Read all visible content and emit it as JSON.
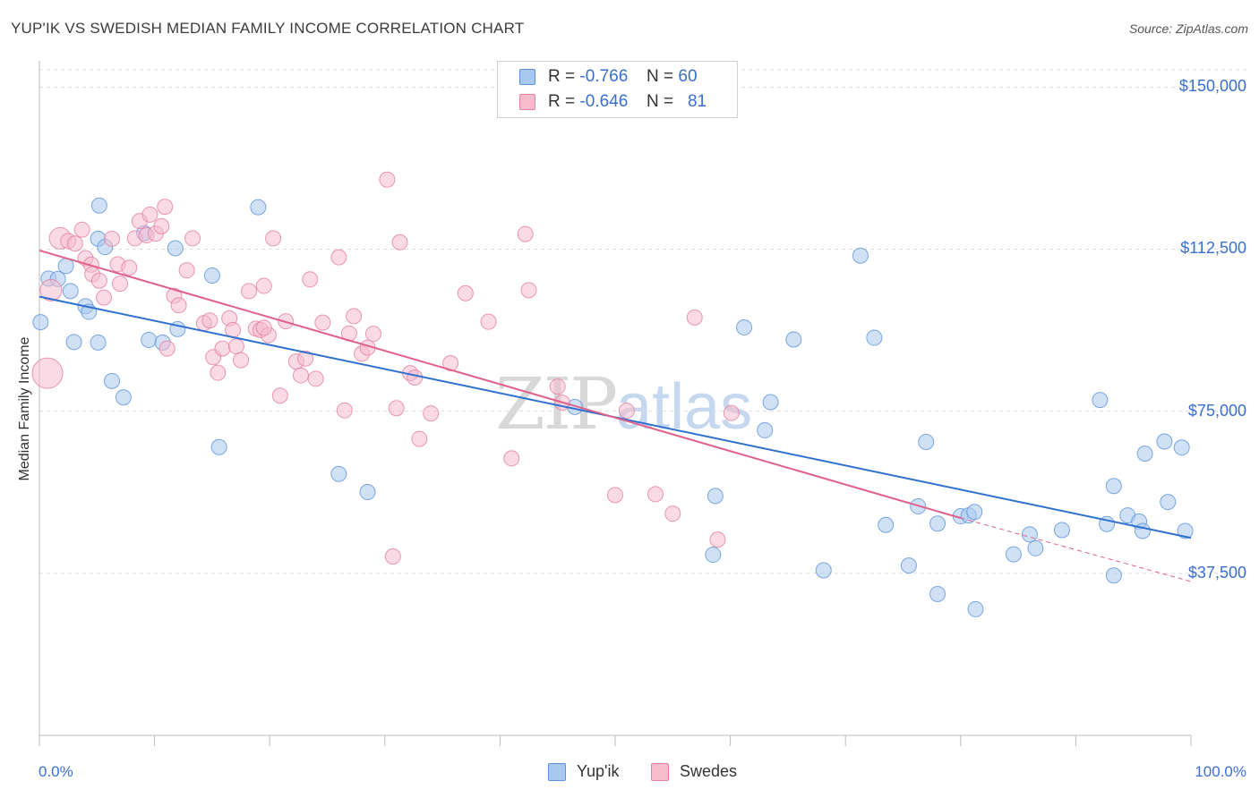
{
  "header": {
    "title": "YUP'IK VS SWEDISH MEDIAN FAMILY INCOME CORRELATION CHART",
    "source": "Source: ZipAtlas.com"
  },
  "legend": {
    "rows": [
      {
        "r_label": "R =",
        "r_value": "-0.766",
        "n_label": "N =",
        "n_value": "60"
      },
      {
        "r_label": "R =",
        "r_value": "-0.646",
        "n_label": "N =",
        "n_value": "81"
      }
    ]
  },
  "bottom_legend": {
    "items": [
      {
        "label": "Yup'ik"
      },
      {
        "label": "Swedes"
      }
    ]
  },
  "watermark": {
    "zip": "ZIP",
    "atlas": "atlas"
  },
  "colors": {
    "yupik_fill": "#a9c8ef",
    "yupik_stroke": "#5d93d9",
    "yupik_line": "#2f6fd0",
    "swedes_fill": "#f6bccd",
    "swedes_stroke": "#e57fa0",
    "swedes_line": "#e0608a",
    "axis_text": "#3a6fd0",
    "grid": "#dddddd"
  },
  "chart_data": {
    "type": "scatter",
    "title": "YUP'IK VS SWEDISH MEDIAN FAMILY INCOME CORRELATION CHART",
    "xlabel": "",
    "ylabel": "Median Family Income",
    "x_tick_labels": [
      "0.0%",
      "100.0%"
    ],
    "y_tick_labels": [
      "$37,500",
      "$75,000",
      "$112,500",
      "$150,000"
    ],
    "y_ticks": [
      37500,
      75000,
      112500,
      150000
    ],
    "xlim": [
      0,
      100
    ],
    "ylim": [
      0,
      154000
    ],
    "grid": true,
    "legend_position": "top-center",
    "series": [
      {
        "name": "Yup'ik",
        "r": -0.766,
        "n": 60,
        "trend": {
          "x0": 0,
          "y0": 101500,
          "x1": 100,
          "y1": 45700
        },
        "points": [
          [
            0.1,
            95600
          ],
          [
            0.8,
            105700
          ],
          [
            2.3,
            108600
          ],
          [
            1.6,
            105600
          ],
          [
            2.7,
            102800
          ],
          [
            3.0,
            91000
          ],
          [
            4.0,
            99300
          ],
          [
            4.3,
            98000
          ],
          [
            5.1,
            90900
          ],
          [
            5.1,
            114900
          ],
          [
            5.2,
            122600
          ],
          [
            5.7,
            113000
          ],
          [
            6.3,
            82000
          ],
          [
            7.3,
            78200
          ],
          [
            9.1,
            116200
          ],
          [
            9.5,
            91500
          ],
          [
            10.7,
            90900
          ],
          [
            11.8,
            112700
          ],
          [
            12.0,
            94000
          ],
          [
            15.0,
            106400
          ],
          [
            15.6,
            66700
          ],
          [
            19.0,
            122200
          ],
          [
            26.0,
            60500
          ],
          [
            28.5,
            56300
          ],
          [
            61.2,
            94400
          ],
          [
            63.5,
            77100
          ],
          [
            63.0,
            70600
          ],
          [
            65.5,
            91600
          ],
          [
            68.1,
            38200
          ],
          [
            71.3,
            111000
          ],
          [
            72.5,
            92000
          ],
          [
            73.5,
            48700
          ],
          [
            75.5,
            39300
          ],
          [
            77.0,
            67900
          ],
          [
            76.3,
            53000
          ],
          [
            78.0,
            49000
          ],
          [
            78.0,
            32700
          ],
          [
            80.0,
            50700
          ],
          [
            80.7,
            50900
          ],
          [
            81.2,
            51700
          ],
          [
            81.3,
            29200
          ],
          [
            84.6,
            41900
          ],
          [
            86.0,
            46500
          ],
          [
            86.5,
            43300
          ],
          [
            88.8,
            47500
          ],
          [
            92.1,
            77600
          ],
          [
            92.7,
            48900
          ],
          [
            93.3,
            57700
          ],
          [
            93.3,
            37000
          ],
          [
            94.5,
            50900
          ],
          [
            95.5,
            49500
          ],
          [
            95.8,
            47300
          ],
          [
            96.0,
            65200
          ],
          [
            97.7,
            68000
          ],
          [
            98.0,
            54000
          ],
          [
            99.2,
            66600
          ],
          [
            99.5,
            47300
          ],
          [
            46.5,
            76000
          ],
          [
            58.7,
            55400
          ],
          [
            58.5,
            41800
          ]
        ]
      },
      {
        "name": "Swedes",
        "r": -0.646,
        "n": 81,
        "trend": {
          "x0": 0,
          "y0": 112200,
          "x1": 80,
          "y1": 50300
        },
        "trend_dashed": {
          "x0": 80,
          "y0": 50300,
          "x1": 100,
          "y1": 35600
        },
        "points": [
          [
            0.7,
            83800
          ],
          [
            1.0,
            103000
          ],
          [
            1.8,
            115000
          ],
          [
            2.5,
            114400
          ],
          [
            3.1,
            113800
          ],
          [
            3.7,
            117000
          ],
          [
            4.0,
            110400
          ],
          [
            4.5,
            108900
          ],
          [
            4.6,
            106700
          ],
          [
            5.2,
            105200
          ],
          [
            5.6,
            101300
          ],
          [
            6.3,
            114900
          ],
          [
            6.8,
            109000
          ],
          [
            7.0,
            104500
          ],
          [
            7.8,
            108200
          ],
          [
            8.3,
            115000
          ],
          [
            8.7,
            119000
          ],
          [
            9.3,
            115700
          ],
          [
            9.6,
            120500
          ],
          [
            10.1,
            116100
          ],
          [
            10.6,
            117800
          ],
          [
            10.9,
            122300
          ],
          [
            11.1,
            89500
          ],
          [
            11.7,
            101700
          ],
          [
            12.1,
            99500
          ],
          [
            12.8,
            107600
          ],
          [
            13.3,
            115000
          ],
          [
            14.3,
            95400
          ],
          [
            14.8,
            96000
          ],
          [
            15.1,
            87500
          ],
          [
            15.5,
            83900
          ],
          [
            15.9,
            89500
          ],
          [
            16.5,
            96500
          ],
          [
            16.8,
            93800
          ],
          [
            17.1,
            90000
          ],
          [
            17.5,
            86800
          ],
          [
            18.2,
            102800
          ],
          [
            18.8,
            94100
          ],
          [
            19.2,
            93800
          ],
          [
            19.5,
            104000
          ],
          [
            19.9,
            92600
          ],
          [
            20.3,
            115000
          ],
          [
            20.9,
            78600
          ],
          [
            21.4,
            95800
          ],
          [
            22.3,
            86500
          ],
          [
            22.7,
            83300
          ],
          [
            23.1,
            87200
          ],
          [
            23.5,
            105500
          ],
          [
            24.0,
            82500
          ],
          [
            24.6,
            95500
          ],
          [
            26.0,
            110600
          ],
          [
            26.5,
            75200
          ],
          [
            26.9,
            93000
          ],
          [
            27.3,
            97000
          ],
          [
            28.0,
            88300
          ],
          [
            28.5,
            89700
          ],
          [
            29.0,
            92900
          ],
          [
            30.2,
            128600
          ],
          [
            30.7,
            41400
          ],
          [
            31.0,
            75700
          ],
          [
            31.3,
            114100
          ],
          [
            32.2,
            83800
          ],
          [
            32.6,
            82800
          ],
          [
            33.0,
            68600
          ],
          [
            34.0,
            74500
          ],
          [
            35.7,
            86100
          ],
          [
            37.0,
            102300
          ],
          [
            39.0,
            95700
          ],
          [
            41.0,
            64100
          ],
          [
            42.2,
            116000
          ],
          [
            42.5,
            103000
          ],
          [
            45.0,
            80700
          ],
          [
            45.4,
            77000
          ],
          [
            50.0,
            55600
          ],
          [
            51.0,
            75100
          ],
          [
            53.5,
            55800
          ],
          [
            55.0,
            51300
          ],
          [
            56.9,
            96700
          ],
          [
            58.9,
            45300
          ],
          [
            60.1,
            74600
          ],
          [
            19.5,
            94300
          ]
        ]
      }
    ]
  }
}
